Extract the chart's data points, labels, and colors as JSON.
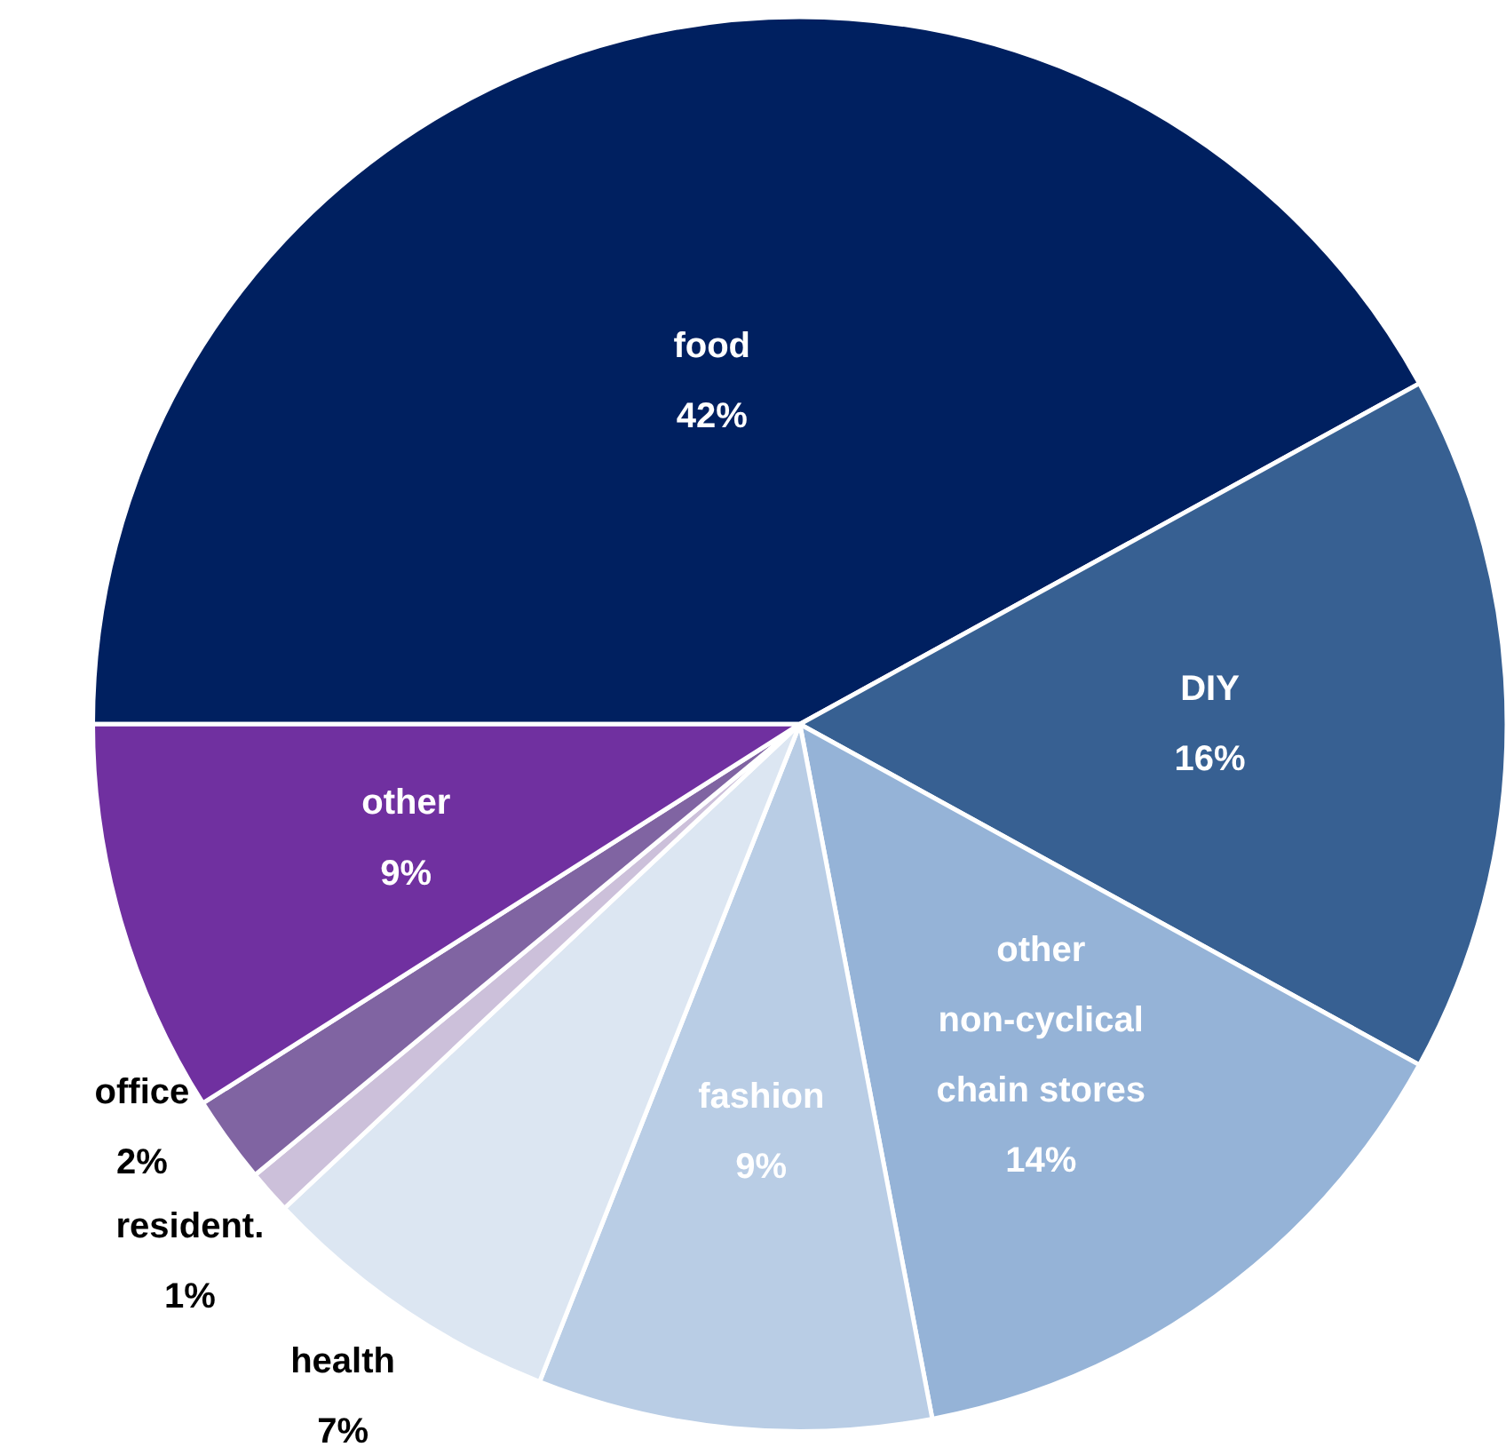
{
  "chart_data": {
    "type": "pie",
    "categories": [
      "food",
      "DIY",
      "other\nnon-cyclical\nchain stores",
      "fashion",
      "health",
      "resident.",
      "office",
      "other"
    ],
    "values": [
      42,
      16,
      14,
      9,
      7,
      1,
      2,
      9
    ],
    "colors": [
      "#002060",
      "#376092",
      "#95b3d7",
      "#b9cde5",
      "#dce6f2",
      "#ccc0da",
      "#8064a2",
      "#7030a0"
    ],
    "value_labels": [
      "42%",
      "16%",
      "14%",
      "9%",
      "7%",
      "1%",
      "2%",
      "9%"
    ]
  }
}
